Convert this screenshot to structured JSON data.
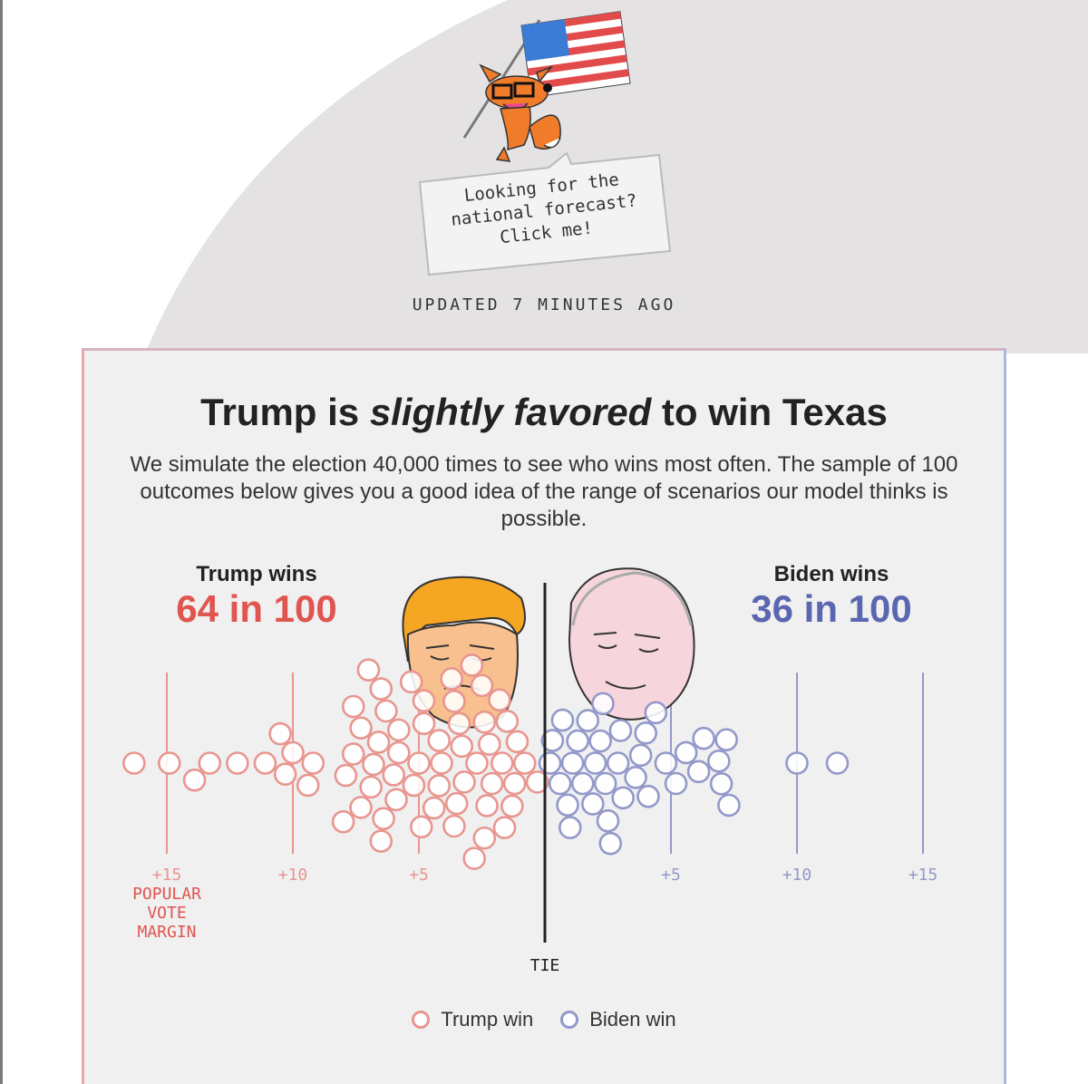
{
  "promo": {
    "bubble_text": "Looking for the\nnational forecast?\nClick me!"
  },
  "updated": "UPDATED 7 MINUTES AGO",
  "headline": {
    "part1": "Trump is ",
    "emphasis": "slightly favored",
    "part2": " to win Texas"
  },
  "subhead": "We simulate the election 40,000 times to see who wins most often. The sample of 100 outcomes below gives you a good idea of the range of scenarios our model thinks is possible.",
  "trump": {
    "label": "Trump wins",
    "count": "64 in 100"
  },
  "biden": {
    "label": "Biden wins",
    "count": "36 in 100"
  },
  "colors": {
    "trump": "#e8968f",
    "trump_text": "#e0554f",
    "biden": "#9399c9",
    "biden_text": "#5a67b0",
    "card_bg": "#f0f0f1",
    "tie_line": "#222222"
  },
  "legend": {
    "trump": "Trump win",
    "biden": "Biden win"
  },
  "chart_data": {
    "type": "scatter",
    "title": "Trump is slightly favored to win Texas",
    "xlabel": "POPULAR VOTE MARGIN",
    "x_range": [
      -17,
      17
    ],
    "tie_label": "TIE",
    "ticks": [
      {
        "value": -15,
        "label": "+15",
        "side": "trump"
      },
      {
        "value": -10,
        "label": "+10",
        "side": "trump"
      },
      {
        "value": -5,
        "label": "+5",
        "side": "trump"
      },
      {
        "value": 5,
        "label": "+5",
        "side": "biden"
      },
      {
        "value": 10,
        "label": "+10",
        "side": "biden"
      },
      {
        "value": 15,
        "label": "+15",
        "side": "biden"
      }
    ],
    "axis_title_lines": [
      "POPULAR",
      "VOTE",
      "MARGIN"
    ],
    "series": [
      {
        "name": "Trump win",
        "count": 64,
        "margins": [
          -16.3,
          -14.9,
          -13.9,
          -13.3,
          -12.2,
          -11.1,
          -10.5,
          -10.3,
          -10.0,
          -9.4,
          -9.2,
          -8.0,
          -7.9,
          -7.6,
          -7.6,
          -7.3,
          -7.3,
          -7.0,
          -6.9,
          -6.8,
          -6.6,
          -6.5,
          -6.5,
          -6.4,
          -6.3,
          -6.0,
          -5.9,
          -5.8,
          -5.8,
          -5.3,
          -5.2,
          -5.0,
          -4.9,
          -4.8,
          -4.8,
          -4.4,
          -4.2,
          -4.2,
          -4.1,
          -3.7,
          -3.6,
          -3.6,
          -3.5,
          -3.4,
          -3.3,
          -3.2,
          -2.9,
          -2.8,
          -2.7,
          -2.5,
          -2.4,
          -2.4,
          -2.3,
          -2.2,
          -2.1,
          -1.8,
          -1.7,
          -1.6,
          -1.5,
          -1.3,
          -1.2,
          -1.1,
          -0.8,
          -0.3
        ]
      },
      {
        "name": "Biden win",
        "count": 36,
        "margins": [
          0.2,
          0.3,
          0.6,
          0.7,
          0.9,
          1.0,
          1.1,
          1.3,
          1.5,
          1.7,
          1.9,
          2.0,
          2.2,
          2.3,
          2.4,
          2.5,
          2.6,
          2.9,
          3.0,
          3.1,
          3.6,
          3.8,
          4.0,
          4.1,
          4.4,
          4.8,
          5.2,
          5.6,
          6.1,
          6.3,
          6.9,
          7.0,
          7.2,
          7.3,
          10.0,
          11.6
        ]
      }
    ]
  }
}
